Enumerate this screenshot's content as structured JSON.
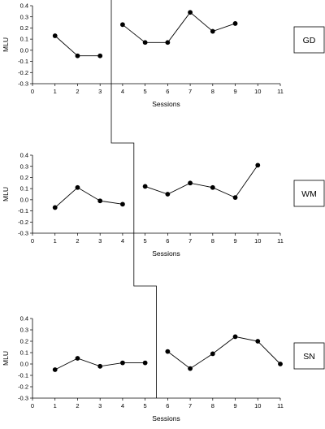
{
  "chart_data": [
    {
      "type": "line",
      "subject": "GD",
      "ylabel": "MLU",
      "xlabel": "Sessions",
      "xlim": [
        0,
        11
      ],
      "ylim": [
        -0.3,
        0.4
      ],
      "xticks": [
        "0",
        "1",
        "2",
        "3",
        "4",
        "5",
        "6",
        "7",
        "8",
        "9",
        "10",
        "11"
      ],
      "yticks": [
        "0.4",
        "0.3",
        "0.2",
        "0.1",
        "0.0",
        "-0.1",
        "-0.2",
        "-0.3"
      ],
      "phase_change_after": 3.5,
      "phases": [
        {
          "x": [
            1,
            2,
            3
          ],
          "y": [
            0.13,
            -0.05,
            -0.05
          ]
        },
        {
          "x": [
            4,
            5,
            6,
            7,
            8,
            9
          ],
          "y": [
            0.23,
            0.07,
            0.07,
            0.34,
            0.17,
            0.24
          ]
        }
      ]
    },
    {
      "type": "line",
      "subject": "WM",
      "ylabel": "MLU",
      "xlabel": "Sessions",
      "xlim": [
        0,
        11
      ],
      "ylim": [
        -0.3,
        0.4
      ],
      "xticks": [
        "0",
        "1",
        "2",
        "3",
        "4",
        "5",
        "6",
        "7",
        "8",
        "9",
        "10",
        "11"
      ],
      "yticks": [
        "0.4",
        "0.3",
        "0.2",
        "0.1",
        "0.0",
        "-0.1",
        "-0.2",
        "-0.3"
      ],
      "phase_change_after": 4.5,
      "phases": [
        {
          "x": [
            1,
            2,
            3,
            4
          ],
          "y": [
            -0.07,
            0.11,
            -0.01,
            -0.04
          ]
        },
        {
          "x": [
            5,
            6,
            7,
            8,
            9,
            10
          ],
          "y": [
            0.12,
            0.05,
            0.15,
            0.11,
            0.02,
            0.31
          ]
        }
      ]
    },
    {
      "type": "line",
      "subject": "SN",
      "ylabel": "MLU",
      "xlabel": "Sessions",
      "xlim": [
        0,
        11
      ],
      "ylim": [
        -0.3,
        0.4
      ],
      "xticks": [
        "0",
        "1",
        "2",
        "3",
        "4",
        "5",
        "6",
        "7",
        "8",
        "9",
        "10",
        "11"
      ],
      "yticks": [
        "0.4",
        "0.3",
        "0.2",
        "0.1",
        "0.0",
        "-0.1",
        "-0.2",
        "-0.3"
      ],
      "phase_change_after": 5.5,
      "phases": [
        {
          "x": [
            1,
            2,
            3,
            4,
            5
          ],
          "y": [
            -0.05,
            0.05,
            -0.02,
            0.01,
            0.01
          ]
        },
        {
          "x": [
            6,
            7,
            8,
            9,
            10,
            11
          ],
          "y": [
            0.11,
            -0.04,
            0.09,
            0.24,
            0.2,
            0.0
          ]
        }
      ]
    }
  ]
}
